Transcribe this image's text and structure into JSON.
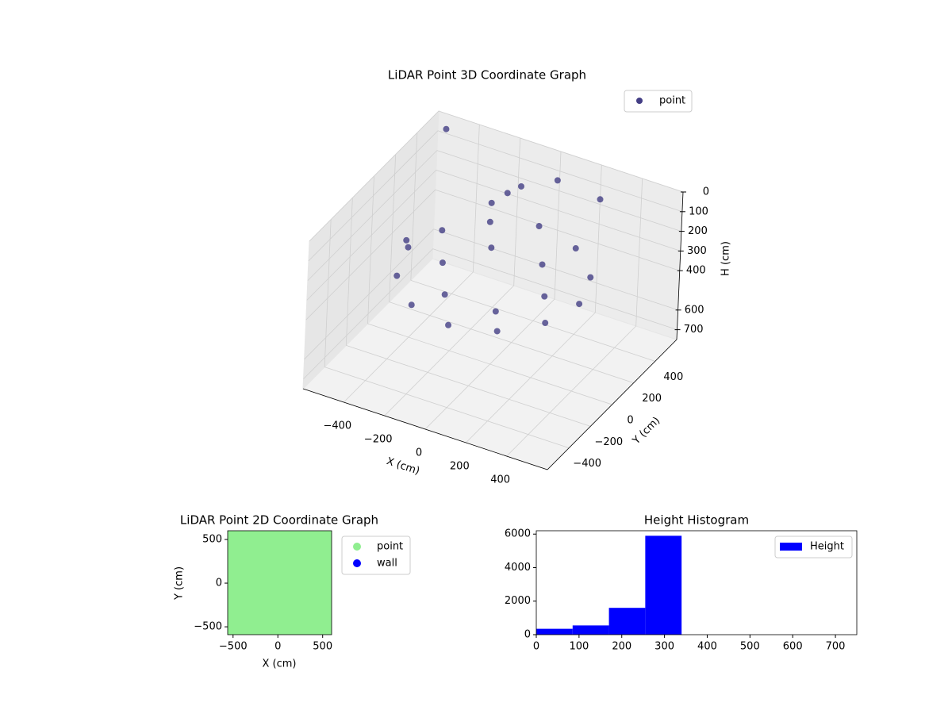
{
  "chart_data": [
    {
      "type": "scatter3d",
      "title": "LiDAR Point 3D Coordinate Graph",
      "xlabel": "X (cm)",
      "ylabel": "Y (cm)",
      "zlabel": "H (cm)",
      "xlim": [
        -600,
        600
      ],
      "ylim": [
        -600,
        600
      ],
      "zlim": [
        0,
        750
      ],
      "zinverted": true,
      "xticks": [
        {
          "value": -400,
          "label": "−400"
        },
        {
          "value": -200,
          "label": "−200"
        },
        0,
        200,
        400
      ],
      "yticks": [
        {
          "value": -400,
          "label": "−400"
        },
        {
          "value": -200,
          "label": "−200"
        },
        0,
        200,
        400
      ],
      "zticks": [
        0,
        100,
        200,
        300,
        400,
        600,
        700
      ],
      "grid": true,
      "legend": "upper right",
      "series": [
        {
          "name": "point",
          "color": "#433e85",
          "x": [
            420,
            364,
            210,
            0,
            -210,
            -364,
            -420,
            -364,
            -210,
            0,
            210,
            364,
            250,
            125,
            -125,
            -250,
            -125,
            125,
            -100,
            -60,
            -150,
            80,
            300,
            -480,
            -520
          ],
          "y": [
            0,
            210,
            364,
            420,
            364,
            210,
            0,
            -210,
            -364,
            -420,
            -364,
            -210,
            0,
            216,
            216,
            0,
            -216,
            -216,
            300,
            350,
            250,
            420,
            400,
            100,
            520
          ],
          "z": [
            300,
            300,
            290,
            280,
            300,
            310,
            300,
            310,
            320,
            320,
            310,
            300,
            320,
            320,
            320,
            320,
            320,
            320,
            80,
            60,
            120,
            20,
            30,
            340,
            20
          ]
        }
      ]
    },
    {
      "type": "scatter",
      "title": "LiDAR Point 2D Coordinate Graph",
      "xlabel": "X (cm)",
      "ylabel": "Y (cm)",
      "xlim": [
        -560,
        600
      ],
      "ylim": [
        -590,
        600
      ],
      "xticks": [
        {
          "value": -500,
          "label": "−500"
        },
        0,
        500
      ],
      "yticks": [
        {
          "value": -500,
          "label": "−500"
        },
        0,
        500
      ],
      "legend": "outside right",
      "series": [
        {
          "name": "point",
          "color": "#90ee90",
          "x": [
            420,
            364,
            210,
            0,
            -210,
            -364,
            -420,
            -364,
            -210,
            0,
            210,
            364,
            250,
            125,
            -125,
            -250,
            -125,
            125,
            -100,
            -60,
            -150,
            80,
            300,
            -480,
            -520,
            -470,
            -250,
            0,
            200,
            -300,
            100,
            -100,
            300
          ],
          "y": [
            0,
            210,
            364,
            420,
            364,
            210,
            0,
            -210,
            -364,
            -420,
            -364,
            -210,
            0,
            216,
            216,
            0,
            -216,
            -216,
            300,
            350,
            250,
            420,
            400,
            100,
            520,
            -320,
            100,
            0,
            100,
            -200,
            -100,
            150,
            -300
          ]
        },
        {
          "name": "wall",
          "color": "#0000ff",
          "x": [],
          "y": []
        }
      ]
    },
    {
      "type": "histogram",
      "title": "Height Histogram",
      "name": "Height",
      "color": "#0000ff",
      "bins": [
        0,
        85,
        170,
        255,
        340
      ],
      "values": [
        350,
        550,
        1600,
        5900
      ],
      "xlim": [
        0,
        750
      ],
      "ylim": [
        0,
        6200
      ],
      "xticks": [
        0,
        100,
        200,
        300,
        400,
        500,
        600,
        700
      ],
      "yticks": [
        0,
        2000,
        4000,
        6000
      ],
      "legend": "upper right"
    }
  ]
}
